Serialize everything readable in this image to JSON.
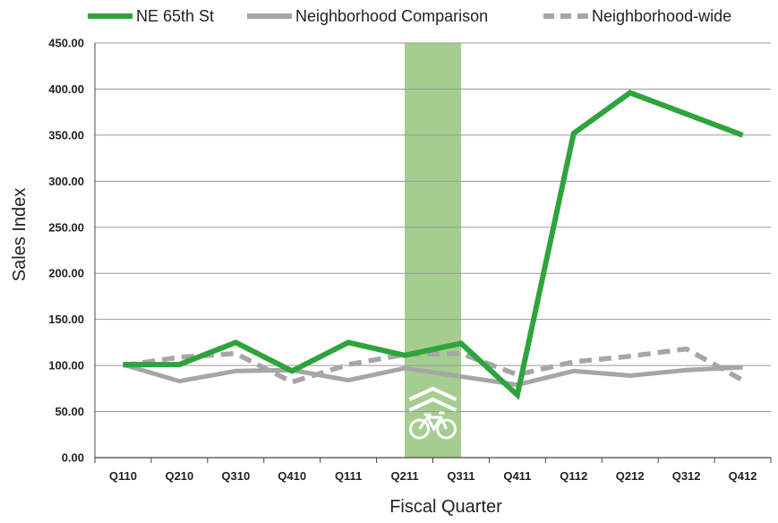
{
  "chart_data": {
    "type": "line",
    "xlabel": "Fiscal Quarter",
    "ylabel": "Sales Index",
    "ylim": [
      0,
      450
    ],
    "yticks": [
      "0.00",
      "50.00",
      "100.00",
      "150.00",
      "200.00",
      "250.00",
      "300.00",
      "350.00",
      "400.00",
      "450.00"
    ],
    "categories": [
      "Q110",
      "Q210",
      "Q310",
      "Q410",
      "Q111",
      "Q211",
      "Q311",
      "Q411",
      "Q112",
      "Q212",
      "Q312",
      "Q412"
    ],
    "grid": true,
    "legend_position": "top",
    "highlight_band": {
      "from": "Q211",
      "to": "Q311",
      "icon": "bicycle-lane-icon",
      "color": "#a5cd8f"
    },
    "series": [
      {
        "name": "NE 65th St",
        "color": "#2ea43c",
        "style": "solid",
        "values": [
          101,
          101,
          125,
          94,
          125,
          111,
          124,
          68,
          352,
          396,
          373,
          350
        ]
      },
      {
        "name": "Neighborhood Comparison",
        "color": "#a6a6a6",
        "style": "solid",
        "values": [
          101,
          83,
          94,
          95,
          84,
          97,
          88,
          79,
          94,
          89,
          95,
          98
        ]
      },
      {
        "name": "Neighborhood-wide",
        "color": "#a6a6a6",
        "style": "dashed",
        "values": [
          100,
          109,
          113,
          82,
          101,
          112,
          113,
          90,
          104,
          110,
          118,
          84
        ]
      }
    ]
  }
}
